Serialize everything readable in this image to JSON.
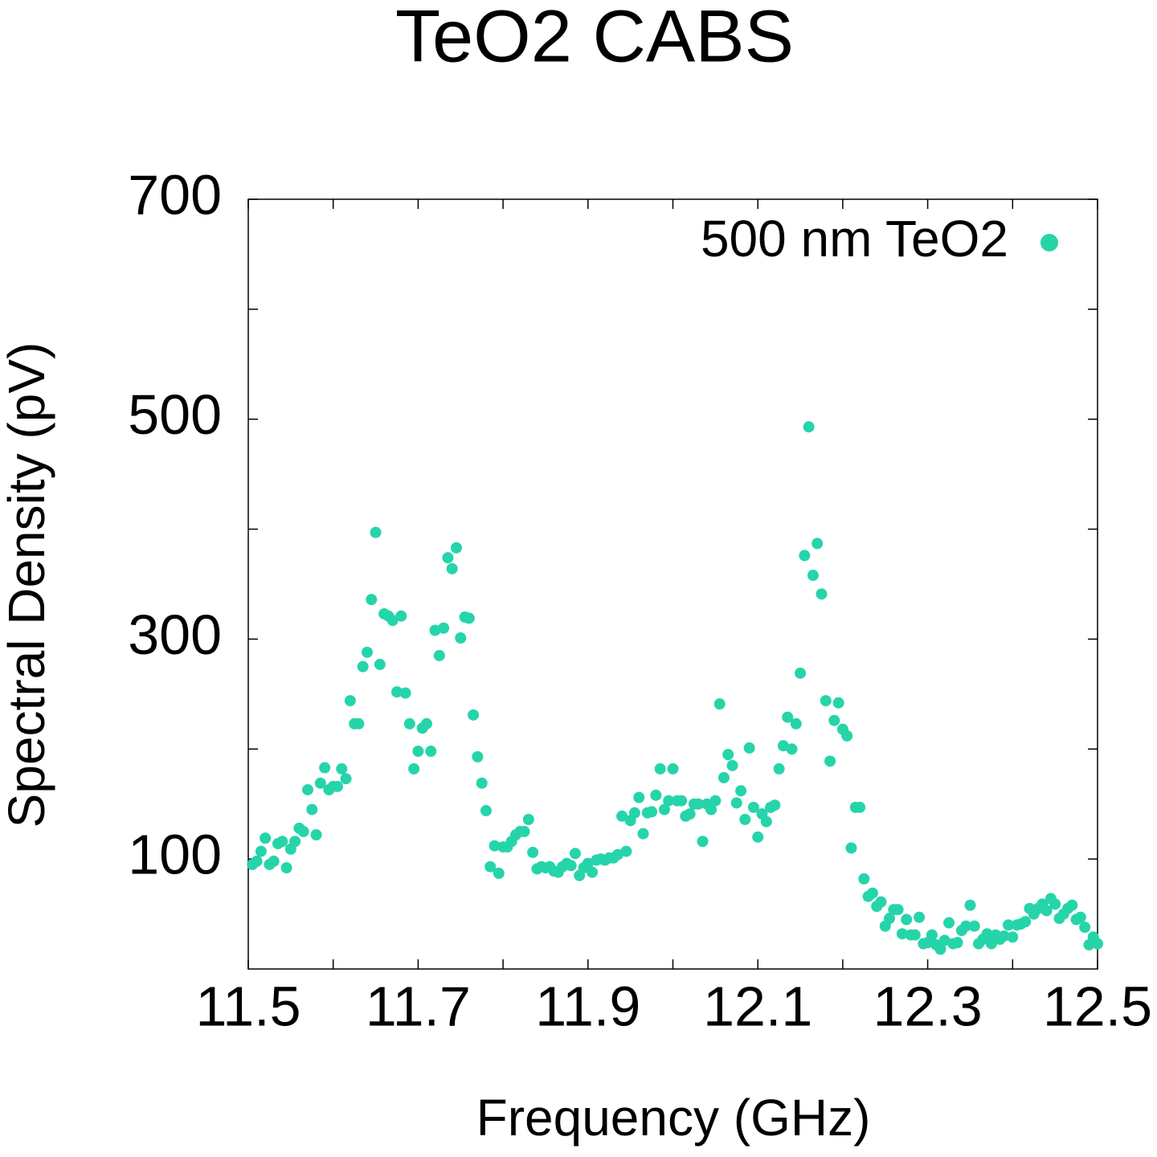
{
  "chart_data": {
    "type": "scatter",
    "title": "TeO2 CABS",
    "x_label": "Frequency (GHz)",
    "y_label": "Spectral Density (pV)",
    "xlim": [
      11.5,
      12.5
    ],
    "ylim": [
      0,
      700
    ],
    "xticks": [
      11.5,
      11.7,
      11.9,
      12.1,
      12.3,
      12.5
    ],
    "xminorticks": [
      11.6,
      11.8,
      12.0,
      12.2,
      12.4
    ],
    "yticks": [
      100,
      300,
      500,
      700
    ],
    "yminorticks": [
      200,
      400,
      600
    ],
    "legend": "upper right",
    "series": [
      {
        "name": "500 nm TeO2",
        "color": "#26d4aa",
        "x": [
          11.505,
          11.51,
          11.515,
          11.52,
          11.525,
          11.53,
          11.535,
          11.54,
          11.545,
          11.55,
          11.555,
          11.56,
          11.565,
          11.57,
          11.575,
          11.58,
          11.585,
          11.59,
          11.595,
          11.6,
          11.605,
          11.61,
          11.615,
          11.62,
          11.625,
          11.63,
          11.635,
          11.64,
          11.645,
          11.65,
          11.655,
          11.66,
          11.665,
          11.67,
          11.675,
          11.68,
          11.685,
          11.69,
          11.695,
          11.7,
          11.705,
          11.71,
          11.715,
          11.72,
          11.725,
          11.73,
          11.735,
          11.74,
          11.745,
          11.75,
          11.755,
          11.76,
          11.765,
          11.77,
          11.775,
          11.78,
          11.785,
          11.79,
          11.795,
          11.8,
          11.805,
          11.81,
          11.815,
          11.82,
          11.825,
          11.83,
          11.835,
          11.84,
          11.845,
          11.85,
          11.855,
          11.86,
          11.865,
          11.87,
          11.875,
          11.88,
          11.885,
          11.89,
          11.895,
          11.9,
          11.905,
          11.91,
          11.915,
          11.92,
          11.925,
          11.93,
          11.935,
          11.94,
          11.945,
          11.95,
          11.955,
          11.96,
          11.965,
          11.97,
          11.975,
          11.98,
          11.985,
          11.99,
          11.995,
          12.0,
          12.005,
          12.01,
          12.015,
          12.02,
          12.025,
          12.03,
          12.035,
          12.04,
          12.045,
          12.05,
          12.055,
          12.06,
          12.065,
          12.07,
          12.075,
          12.08,
          12.085,
          12.09,
          12.095,
          12.1,
          12.105,
          12.11,
          12.115,
          12.12,
          12.125,
          12.13,
          12.135,
          12.14,
          12.145,
          12.15,
          12.155,
          12.16,
          12.165,
          12.17,
          12.175,
          12.18,
          12.185,
          12.19,
          12.195,
          12.2,
          12.205,
          12.21,
          12.215,
          12.22,
          12.225,
          12.23,
          12.235,
          12.24,
          12.245,
          12.25,
          12.255,
          12.26,
          12.265,
          12.27,
          12.275,
          12.28,
          12.285,
          12.29,
          12.295,
          12.3,
          12.305,
          12.31,
          12.315,
          12.32,
          12.325,
          12.33,
          12.335,
          12.34,
          12.345,
          12.35,
          12.355,
          12.36,
          12.365,
          12.37,
          12.375,
          12.38,
          12.385,
          12.39,
          12.395,
          12.4,
          12.405,
          12.41,
          12.415,
          12.42,
          12.425,
          12.43,
          12.435,
          12.44,
          12.445,
          12.45,
          12.455,
          12.46,
          12.465,
          12.47,
          12.475,
          12.48,
          12.485,
          12.49,
          12.495,
          12.5
        ],
        "values": [
          95,
          98,
          107,
          119,
          95,
          98,
          114,
          116,
          92,
          109,
          116,
          128,
          125,
          163,
          145,
          122,
          169,
          183,
          163,
          166,
          166,
          182,
          173,
          244,
          223,
          223,
          275,
          288,
          336,
          397,
          277,
          323,
          321,
          317,
          252,
          321,
          251,
          223,
          182,
          198,
          219,
          223,
          198,
          308,
          285,
          310,
          374,
          364,
          383,
          301,
          320,
          319,
          231,
          193,
          169,
          144,
          93,
          112,
          87,
          111,
          111,
          116,
          122,
          125,
          125,
          136,
          106,
          91,
          93,
          92,
          93,
          89,
          88,
          93,
          96,
          94,
          105,
          85,
          92,
          96,
          88,
          99,
          100,
          99,
          101,
          101,
          104,
          139,
          107,
          135,
          142,
          156,
          123,
          142,
          143,
          158,
          182,
          145,
          153,
          182,
          153,
          153,
          139,
          141,
          150,
          150,
          116,
          150,
          145,
          153,
          241,
          174,
          195,
          185,
          151,
          162,
          136,
          201,
          147,
          120,
          141,
          134,
          147,
          149,
          182,
          203,
          229,
          200,
          223,
          269,
          376,
          493,
          358,
          387,
          341,
          244,
          189,
          226,
          242,
          218,
          212,
          110,
          147,
          147,
          82,
          66,
          69,
          57,
          61,
          39,
          46,
          54,
          54,
          32,
          45,
          31,
          31,
          47,
          23,
          24,
          31,
          22,
          18,
          26,
          42,
          23,
          24,
          35,
          39,
          58,
          39,
          23,
          27,
          32,
          23,
          31,
          27,
          30,
          40,
          29,
          40,
          41,
          43,
          55,
          50,
          55,
          59,
          53,
          64,
          59,
          46,
          50,
          55,
          58,
          45,
          47,
          38,
          22,
          29,
          23
        ]
      }
    ]
  }
}
